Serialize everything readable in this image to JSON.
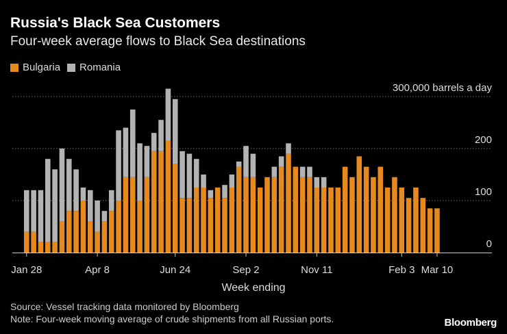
{
  "title": "Russia's Black Sea Customers",
  "subtitle": "Four-week average flows to Black Sea destinations",
  "source": "Source: Vessel tracking data monitored by Bloomberg",
  "note": "Note: Four-week moving average of crude shipments from all Russian ports.",
  "logo": "Bloomberg",
  "colors": {
    "bulgaria": "#e68a1f",
    "romania": "#b3b3b3",
    "background": "#000000",
    "grid": "#777777",
    "text": "#dddddd"
  },
  "chart_data": {
    "type": "bar",
    "stacked": true,
    "ylim": [
      0,
      300000
    ],
    "yticks": [
      0,
      100000,
      200000,
      300000
    ],
    "ytick_labels": [
      "0",
      "100",
      "200",
      "300,000 barrels a day"
    ],
    "xlabel": "Week ending",
    "xtick_labels": [
      {
        "label": "Jan 28",
        "index": 0
      },
      {
        "label": "Apr 8",
        "index": 10
      },
      {
        "label": "Jun 24",
        "index": 21
      },
      {
        "label": "Sep 2",
        "index": 31
      },
      {
        "label": "Nov 11",
        "index": 41
      },
      {
        "label": "Feb 3",
        "index": 53
      },
      {
        "label": "Mar 10",
        "index": 58
      }
    ],
    "grid": true,
    "legend_position": "top-left",
    "series": [
      {
        "name": "Bulgaria",
        "values": [
          40000,
          40000,
          20000,
          20000,
          20000,
          60000,
          80000,
          80000,
          100000,
          60000,
          40000,
          60000,
          80000,
          100000,
          145000,
          145000,
          100000,
          145000,
          195000,
          195000,
          215000,
          170000,
          105000,
          105000,
          125000,
          125000,
          105000,
          125000,
          105000,
          125000,
          165000,
          145000,
          145000,
          125000,
          145000,
          145000,
          165000,
          190000,
          165000,
          145000,
          145000,
          125000,
          125000,
          125000,
          125000,
          165000,
          145000,
          185000,
          165000,
          145000,
          165000,
          125000,
          145000,
          125000,
          105000,
          125000,
          105000,
          85000,
          85000
        ]
      },
      {
        "name": "Romania",
        "values": [
          80000,
          80000,
          100000,
          160000,
          140000,
          140000,
          100000,
          80000,
          25000,
          60000,
          60000,
          20000,
          40000,
          135000,
          95000,
          130000,
          110000,
          60000,
          35000,
          60000,
          100000,
          125000,
          90000,
          85000,
          55000,
          25000,
          15000,
          0,
          25000,
          25000,
          10000,
          60000,
          45000,
          0,
          0,
          20000,
          20000,
          20000,
          0,
          20000,
          20000,
          20000,
          20000,
          0,
          0,
          0,
          0,
          0,
          0,
          0,
          0,
          0,
          0,
          0,
          0,
          0,
          0,
          0,
          0
        ]
      }
    ]
  }
}
